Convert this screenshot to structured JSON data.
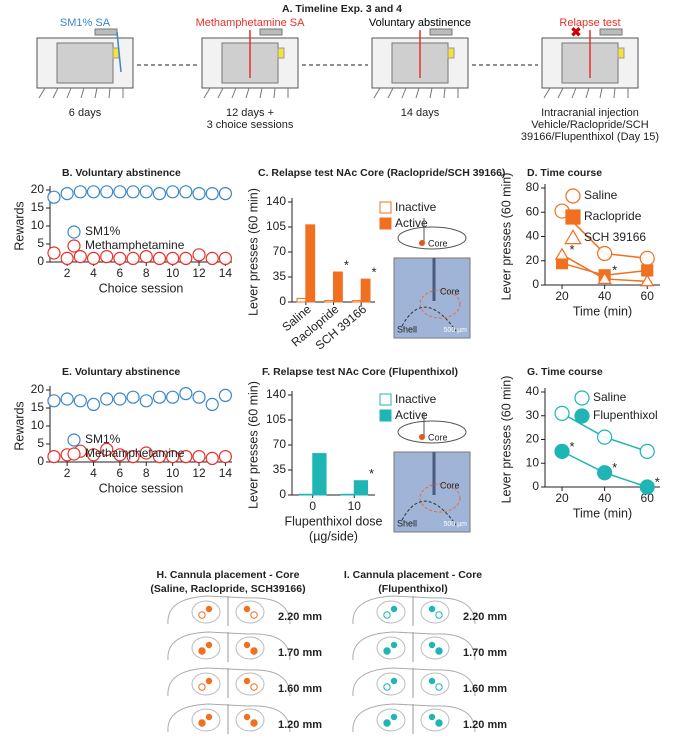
{
  "timeline": {
    "title": "A. Timeline Exp. 3 and 4",
    "stages": [
      {
        "label": "SM1% SA",
        "color": "#3a86c8",
        "duration": [
          "6 days"
        ]
      },
      {
        "label": "Methamphetamine SA",
        "color": "#e8302a",
        "duration": [
          "12 days +",
          "3 choice sessions"
        ]
      },
      {
        "label": "Voluntary abstinence",
        "color": "#000000",
        "duration": [
          "14 days"
        ]
      },
      {
        "label": "Relapse test",
        "color": "#e8302a",
        "duration": [
          "Intracranial injection",
          "Vehicle/Raclopride/SCH",
          "39166/Flupenthixol (Day 15)"
        ]
      }
    ]
  },
  "chart_data": [
    {
      "type": "line",
      "title": "B. Voluntary abstinence",
      "xlabel": "Choice session",
      "ylabel": "Rewards",
      "x": [
        1,
        2,
        3,
        4,
        5,
        6,
        7,
        8,
        9,
        10,
        11,
        12,
        13,
        14
      ],
      "xlim": [
        0.7,
        14.5
      ],
      "xticks": [
        2,
        4,
        6,
        8,
        10,
        12,
        14
      ],
      "ylim": [
        0,
        20
      ],
      "yticks": [
        0,
        5,
        10,
        15,
        20
      ],
      "lines": false,
      "series": [
        {
          "name": "SM1%",
          "color": "#3a86c8",
          "marker": "circle",
          "filled": false,
          "values": [
            18,
            19,
            19.5,
            19.5,
            19.5,
            19.5,
            19.5,
            19.5,
            19,
            19.5,
            19.5,
            19,
            19,
            19
          ]
        },
        {
          "name": "Methamphetamine",
          "color": "#e8302a",
          "marker": "circle",
          "filled": false,
          "values": [
            2.5,
            1,
            1.5,
            1,
            1.5,
            1,
            1,
            1.5,
            1,
            1,
            1,
            2,
            1,
            1
          ]
        }
      ]
    },
    {
      "type": "bar",
      "title": "C. Relapse test NAc Core (Raclopride/SCH 39166)",
      "ylabel": "Lever presses (60 min)",
      "categories": [
        "Saline",
        "Raclopride",
        "SCH 39166"
      ],
      "ylim": [
        0,
        140
      ],
      "yticks": [
        0,
        35,
        70,
        105,
        140
      ],
      "series": [
        {
          "name": "Inactive",
          "color": "#f07020",
          "filled": false,
          "values": [
            5,
            2,
            2
          ]
        },
        {
          "name": "Active",
          "color": "#f07020",
          "filled": true,
          "values": [
            108,
            42,
            32
          ]
        }
      ],
      "annotations": [
        {
          "text": "*",
          "series": 1,
          "index": 1
        },
        {
          "text": "*",
          "series": 1,
          "index": 2
        }
      ],
      "inset_labels": [
        "Core",
        "Core",
        "Shell",
        "500 µm"
      ]
    },
    {
      "type": "line",
      "title": "D. Time course",
      "xlabel": "Time (min)",
      "ylabel": "Lever presses (60 min)",
      "x": [
        20,
        40,
        60
      ],
      "xlim": [
        12,
        66
      ],
      "xticks": [
        20,
        40,
        60
      ],
      "ylim": [
        0,
        80
      ],
      "yticks": [
        0,
        20,
        40,
        60,
        80
      ],
      "lines": true,
      "series": [
        {
          "name": "Saline",
          "color": "#f07020",
          "marker": "circle",
          "filled": false,
          "values": [
            61,
            26,
            22
          ]
        },
        {
          "name": "Raclopride",
          "color": "#f07020",
          "marker": "square",
          "filled": true,
          "values": [
            18,
            8,
            12
          ]
        },
        {
          "name": "SCH 39166",
          "color": "#f07020",
          "marker": "triangle",
          "filled": false,
          "values": [
            25,
            5,
            3
          ]
        }
      ],
      "annotations": [
        {
          "text": "*",
          "series": 2,
          "index": 0
        },
        {
          "text": "*",
          "series": 1,
          "index": 1
        }
      ]
    },
    {
      "type": "line",
      "title": "E. Voluntary abstinence",
      "xlabel": "Choice session",
      "ylabel": "Rewards",
      "x": [
        1,
        2,
        3,
        4,
        5,
        6,
        7,
        8,
        9,
        10,
        11,
        12,
        13,
        14
      ],
      "xlim": [
        0.7,
        14.5
      ],
      "xticks": [
        2,
        4,
        6,
        8,
        10,
        12,
        14
      ],
      "ylim": [
        0,
        20
      ],
      "yticks": [
        0,
        5,
        10,
        15,
        20
      ],
      "lines": false,
      "series": [
        {
          "name": "SM1%",
          "color": "#3a86c8",
          "marker": "circle",
          "filled": false,
          "values": [
            17,
            17.5,
            17,
            16,
            17.5,
            17.5,
            18,
            17,
            18,
            18,
            19,
            18,
            16,
            18.5
          ]
        },
        {
          "name": "Methamphetamine",
          "color": "#e8302a",
          "marker": "circle",
          "filled": false,
          "values": [
            1.5,
            2,
            3,
            2,
            3.5,
            2,
            1.5,
            2.5,
            1.5,
            1.5,
            1.5,
            1.5,
            1,
            1.5
          ]
        }
      ]
    },
    {
      "type": "bar",
      "title": "F. Relapse test NAc Core (Flupenthixol)",
      "ylabel": "Lever presses (60 min)",
      "xlabel": [
        "Flupenthixol dose",
        "(µg/side)"
      ],
      "categories": [
        "0",
        "10"
      ],
      "ylim": [
        0,
        140
      ],
      "yticks": [
        0,
        35,
        70,
        105,
        140
      ],
      "series": [
        {
          "name": "Inactive",
          "color": "#1fb5b5",
          "filled": false,
          "values": [
            1,
            1
          ]
        },
        {
          "name": "Active",
          "color": "#1fb5b5",
          "filled": true,
          "values": [
            58,
            20
          ]
        }
      ],
      "annotations": [
        {
          "text": "*",
          "series": 1,
          "index": 1
        }
      ],
      "inset_labels": [
        "Core",
        "Core",
        "Shell",
        "500 µm"
      ]
    },
    {
      "type": "line",
      "title": "G. Time course",
      "xlabel": "Time (min)",
      "ylabel": "Lever presses (60 min)",
      "x": [
        20,
        40,
        60
      ],
      "xlim": [
        12,
        66
      ],
      "xticks": [
        20,
        40,
        60
      ],
      "ylim": [
        0,
        40
      ],
      "yticks": [
        0,
        10,
        20,
        30,
        40
      ],
      "lines": true,
      "series": [
        {
          "name": "Saline",
          "color": "#1fb5b5",
          "marker": "circle",
          "filled": false,
          "values": [
            31,
            21,
            15
          ]
        },
        {
          "name": "Flupenthixol",
          "color": "#1fb5b5",
          "marker": "circle",
          "filled": true,
          "values": [
            15,
            6,
            0
          ]
        }
      ],
      "annotations": [
        {
          "text": "*",
          "series": 1,
          "index": 0
        },
        {
          "text": "*",
          "series": 1,
          "index": 1
        },
        {
          "text": "*",
          "series": 1,
          "index": 2
        }
      ]
    }
  ],
  "cannula": [
    {
      "title": [
        "H. Cannula placement - Core",
        "(Saline, Raclopride, SCH39166)"
      ],
      "color": "#f07020",
      "levels": [
        "2.20 mm",
        "1.70 mm",
        "1.60 mm",
        "1.20 mm"
      ]
    },
    {
      "title": [
        "I. Cannula placement - Core",
        "(Flupenthixol)"
      ],
      "color": "#1fb5b5",
      "levels": [
        "2.20 mm",
        "1.70 mm",
        "1.60 mm",
        "1.20 mm"
      ]
    }
  ]
}
